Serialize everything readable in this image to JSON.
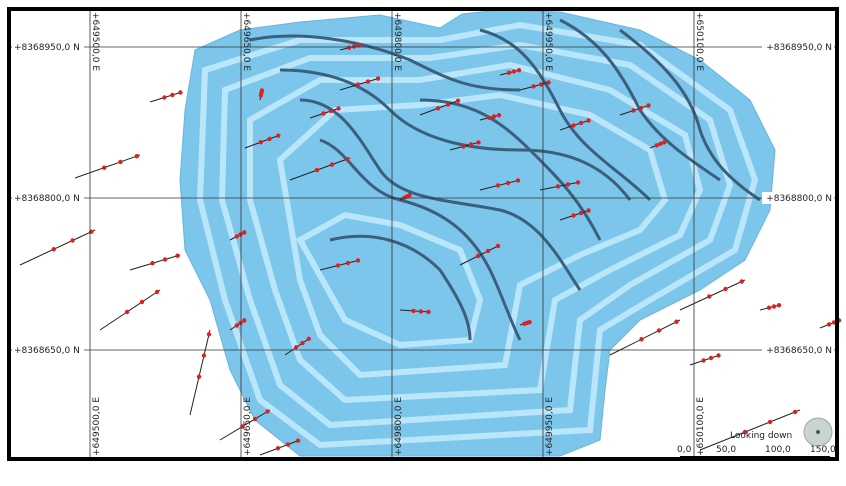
{
  "grid": {
    "rows": [
      "+8368950,0 N",
      "+8368800,0 N",
      "+8368650,0 N"
    ],
    "columns": [
      "+649500,0 E",
      "+649650,0 E",
      "+649800,0 E",
      "+649950,0 E",
      "+650100,0 E"
    ]
  },
  "view_label": "Looking down",
  "scale_bar": {
    "labels": [
      "0,0",
      "50,0",
      "100,0",
      "150,0"
    ]
  }
}
